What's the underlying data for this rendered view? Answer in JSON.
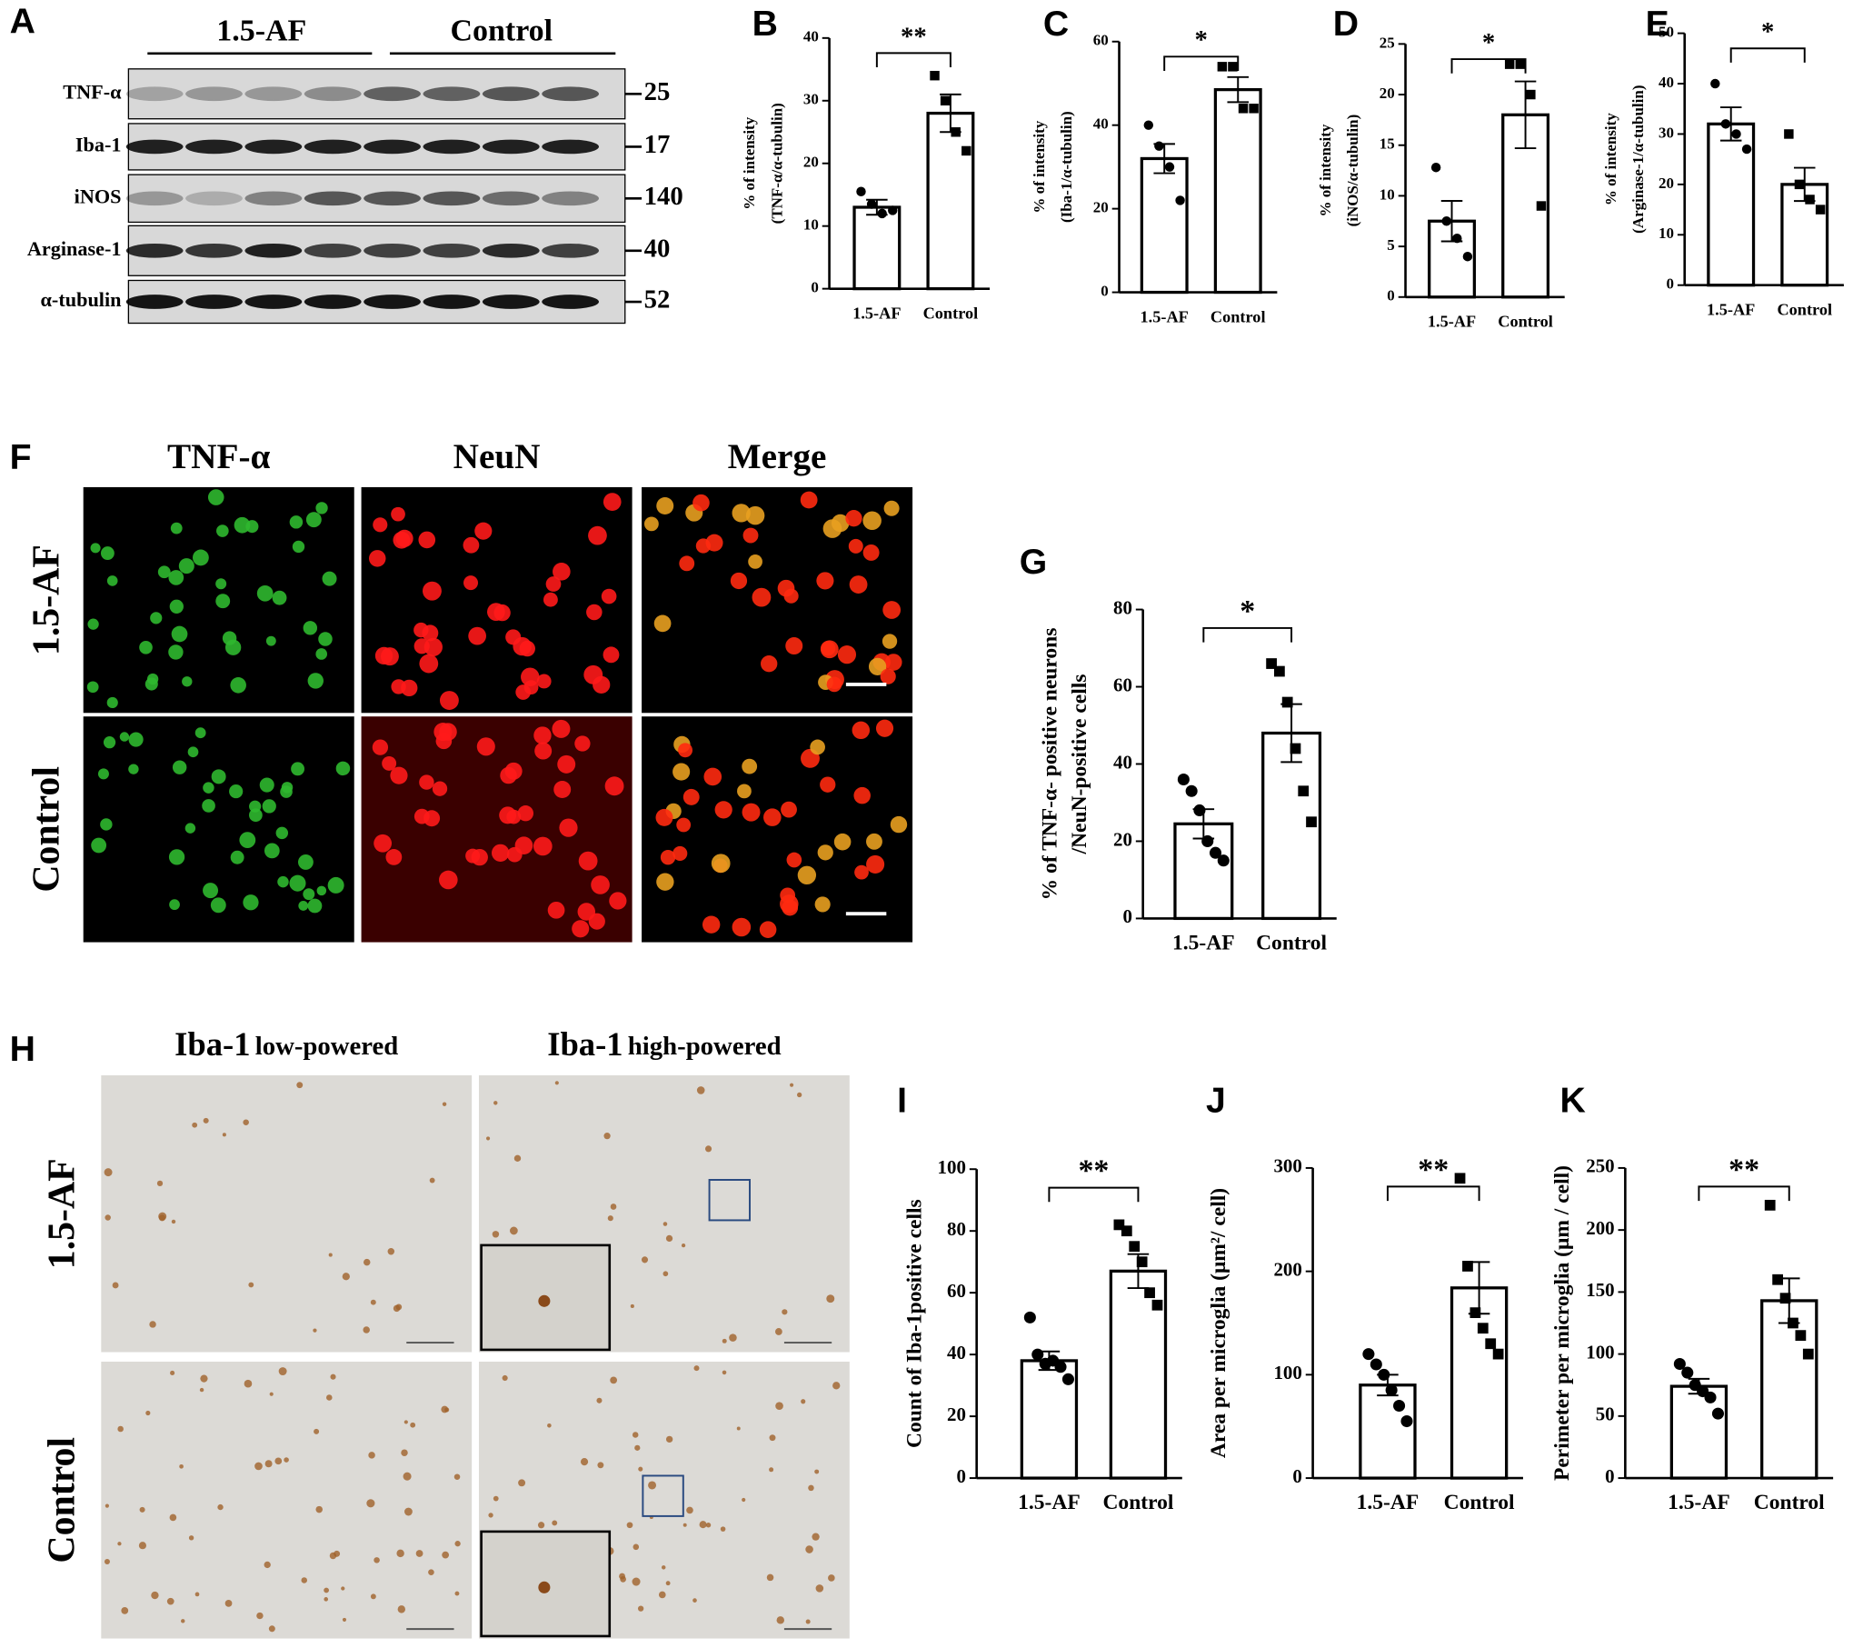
{
  "blot": {
    "panel": "A",
    "groups": [
      "1.5-AF",
      "Control"
    ],
    "rows": [
      {
        "label": "TNF-α",
        "kda": "25"
      },
      {
        "label": "Iba-1",
        "kda": "17"
      },
      {
        "label": "iNOS",
        "kda": "140"
      },
      {
        "label": "Arginase-1",
        "kda": "40"
      },
      {
        "label": "α-tubulin",
        "kda": "52"
      }
    ]
  },
  "fluorescence": {
    "panel": "F",
    "columns": [
      "TNF-α",
      "NeuN",
      "Merge"
    ],
    "rows": [
      "1.5-AF",
      "Control"
    ]
  },
  "histology": {
    "panel": "H",
    "columns": [
      {
        "stain": "Iba-1",
        "power": "low-powered"
      },
      {
        "stain": "Iba-1",
        "power": "high-powered"
      }
    ],
    "rows": [
      "1.5-AF",
      "Control"
    ]
  },
  "chart_data": [
    {
      "type": "bar",
      "panel": "B",
      "ylabel": [
        "% of intensity",
        "(TNF-α/α-tubulin)"
      ],
      "categories": [
        "1.5-AF",
        "Control"
      ],
      "values": [
        13,
        28
      ],
      "errors": [
        1.2,
        3
      ],
      "points": [
        [
          15.5,
          13.5,
          12,
          12.5
        ],
        [
          34,
          30,
          25,
          22
        ]
      ],
      "ylim": [
        0,
        40
      ],
      "yticks": [
        0,
        10,
        20,
        30,
        40
      ],
      "annotation": "**",
      "color": "#ffffff"
    },
    {
      "type": "bar",
      "panel": "C",
      "ylabel": [
        "% of intensity",
        "(Iba-1/α-tubulin)"
      ],
      "categories": [
        "1.5-AF",
        "Control"
      ],
      "values": [
        32,
        48.5
      ],
      "errors": [
        3.5,
        3
      ],
      "points": [
        [
          40,
          35,
          30,
          22
        ],
        [
          54,
          54,
          44,
          44
        ]
      ],
      "ylim": [
        0,
        60
      ],
      "yticks": [
        0,
        20,
        40,
        60
      ],
      "annotation": "*",
      "color": "#ffffff"
    },
    {
      "type": "bar",
      "panel": "D",
      "ylabel": [
        "% of intensity",
        "(iNOS/α-tubulin)"
      ],
      "categories": [
        "1.5-AF",
        "Control"
      ],
      "values": [
        7.5,
        18
      ],
      "errors": [
        2,
        3.3
      ],
      "points": [
        [
          12.8,
          7.5,
          5.8,
          4
        ],
        [
          23,
          23,
          20,
          9
        ]
      ],
      "ylim": [
        0,
        25
      ],
      "yticks": [
        0,
        5,
        10,
        15,
        20,
        25
      ],
      "annotation": "*",
      "color": "#ffffff"
    },
    {
      "type": "bar",
      "panel": "E",
      "ylabel": [
        "% of intensity",
        "(Arginase-1/α-tubulin)"
      ],
      "categories": [
        "1.5-AF",
        "Control"
      ],
      "values": [
        32,
        20
      ],
      "errors": [
        3.3,
        3.3
      ],
      "points": [
        [
          40,
          32,
          30,
          27
        ],
        [
          30,
          20,
          17,
          15
        ]
      ],
      "ylim": [
        0,
        50
      ],
      "yticks": [
        0,
        10,
        20,
        30,
        40,
        50
      ],
      "annotation": "*",
      "color": "#ffffff"
    },
    {
      "type": "bar",
      "panel": "G",
      "ylabel": [
        "% of TNF-α- positive neurons",
        "/NeuN-positive cells"
      ],
      "categories": [
        "1.5-AF",
        "Control"
      ],
      "values": [
        24.5,
        48
      ],
      "errors": [
        3.8,
        7.5
      ],
      "points": [
        [
          36,
          33,
          28,
          20,
          17,
          15
        ],
        [
          66,
          64,
          56,
          44,
          33,
          25
        ]
      ],
      "ylim": [
        0,
        80
      ],
      "yticks": [
        0,
        20,
        40,
        60,
        80
      ],
      "annotation": "*",
      "color": "#ffffff"
    },
    {
      "type": "bar",
      "panel": "I",
      "ylabel": [
        "Count of Iba-1positive cells"
      ],
      "categories": [
        "1.5-AF",
        "Control"
      ],
      "values": [
        38,
        67
      ],
      "errors": [
        3,
        5.5
      ],
      "points": [
        [
          52,
          40,
          37,
          38,
          36,
          32
        ],
        [
          82,
          80,
          75,
          70,
          60,
          56
        ]
      ],
      "ylim": [
        0,
        100
      ],
      "yticks": [
        0,
        20,
        40,
        60,
        80,
        100
      ],
      "annotation": "**",
      "color": "#ffffff"
    },
    {
      "type": "bar",
      "panel": "J",
      "ylabel": [
        "Area per microglia (μm²/ cell)"
      ],
      "categories": [
        "1.5-AF",
        "Control"
      ],
      "values": [
        90,
        184
      ],
      "errors": [
        10,
        25
      ],
      "points": [
        [
          120,
          110,
          100,
          85,
          70,
          55
        ],
        [
          290,
          205,
          160,
          145,
          130,
          120
        ]
      ],
      "ylim": [
        0,
        300
      ],
      "yticks": [
        0,
        100,
        200,
        300
      ],
      "annotation": "**",
      "color": "#ffffff"
    },
    {
      "type": "bar",
      "panel": "K",
      "ylabel": [
        "Perimeter per microglia (μm / cell)"
      ],
      "categories": [
        "1.5-AF",
        "Control"
      ],
      "values": [
        74,
        143
      ],
      "errors": [
        6,
        18
      ],
      "points": [
        [
          92,
          85,
          75,
          70,
          65,
          52
        ],
        [
          220,
          160,
          145,
          125,
          115,
          100
        ]
      ],
      "ylim": [
        0,
        250
      ],
      "yticks": [
        0,
        50,
        100,
        150,
        200,
        250
      ],
      "annotation": "**",
      "color": "#ffffff"
    }
  ]
}
